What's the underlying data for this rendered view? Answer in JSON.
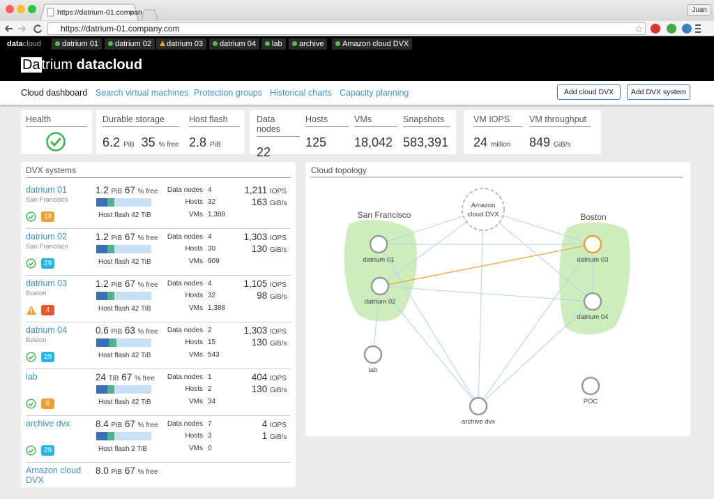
{
  "browser": {
    "tab_title": "https://datrium-01.compan",
    "url": "https://datrium-01.company.com",
    "user": "Juan"
  },
  "topbar": {
    "brand_bold": "data",
    "brand_light": "cloud",
    "tabs": [
      {
        "label": "datrium 01",
        "status": "ok"
      },
      {
        "label": "datrium 02",
        "status": "ok"
      },
      {
        "label": "datrium 03",
        "status": "warning"
      },
      {
        "label": "datrium 04",
        "status": "ok"
      },
      {
        "label": "lab",
        "status": "ok"
      },
      {
        "label": "archive",
        "status": "ok"
      },
      {
        "label": "Amazon cloud DVX",
        "status": "ok"
      }
    ]
  },
  "header": {
    "logo_box": "Da",
    "logo_rest": "trium",
    "logo_product": "datacloud"
  },
  "nav": {
    "links": [
      "Cloud dashboard",
      "Search virtual machines",
      "Protection groups",
      "Historical charts",
      "Capacity planning"
    ],
    "buttons": [
      "Add cloud DVX",
      "Add DVX system"
    ]
  },
  "summary": {
    "health": {
      "title": "Health",
      "status": "ok"
    },
    "durable_storage": {
      "title": "Durable storage",
      "value": "6.2",
      "unit": "PiB",
      "free": "35",
      "free_label": "% free"
    },
    "host_flash": {
      "title": "Host flash",
      "value": "2.8",
      "unit": "PiB"
    },
    "data_nodes": {
      "title": "Data nodes",
      "value": "22"
    },
    "hosts": {
      "title": "Hosts",
      "value": "125"
    },
    "vms": {
      "title": "VMs",
      "value": "18,042"
    },
    "snapshots": {
      "title": "Snapshots",
      "value": "583,391"
    },
    "vm_iops": {
      "title": "VM IOPS",
      "value": "24",
      "unit": "million"
    },
    "vm_throughput": {
      "title": "VM throughput",
      "value": "849",
      "unit": "GiB/s"
    }
  },
  "dvx_systems": {
    "title": "DVX systems",
    "labels": {
      "free": "% free",
      "host_flash": "Host flash",
      "data_nodes": "Data nodes",
      "hosts": "Hosts",
      "vms": "VMs",
      "iops": "IOPS",
      "throughput": "GiB/s"
    },
    "items": [
      {
        "name": "datrium 01",
        "location": "San Francisco",
        "capacity": "1.2",
        "capacity_unit": "PiB",
        "free": 67,
        "flash": "42",
        "flash_unit": "TiB",
        "data_nodes": "4",
        "hosts": "32",
        "vms": "1,388",
        "iops": "1,211",
        "throughput": "163",
        "status": "ok",
        "alerts": "18",
        "badge_color": "#f0a030"
      },
      {
        "name": "datrium 02",
        "location": "San Francisco",
        "capacity": "1.2",
        "capacity_unit": "PiB",
        "free": 67,
        "flash": "42",
        "flash_unit": "TiB",
        "data_nodes": "4",
        "hosts": "30",
        "vms": "909",
        "iops": "1,303",
        "throughput": "130",
        "status": "ok",
        "alerts": "29",
        "badge_color": "#25b5e8"
      },
      {
        "name": "datrium 03",
        "location": "Boston",
        "capacity": "1.2",
        "capacity_unit": "PiB",
        "free": 67,
        "flash": "42",
        "flash_unit": "TiB",
        "data_nodes": "4",
        "hosts": "32",
        "vms": "1,388",
        "iops": "1,105",
        "throughput": "98",
        "status": "warning",
        "alerts": "4",
        "badge_color": "#e8572a"
      },
      {
        "name": "datrium 04",
        "location": "Boston",
        "capacity": "0.6",
        "capacity_unit": "PiB",
        "free": 63,
        "flash": "42",
        "flash_unit": "TiB",
        "data_nodes": "2",
        "hosts": "15",
        "vms": "543",
        "iops": "1,303",
        "throughput": "130",
        "status": "ok",
        "alerts": "29",
        "badge_color": "#25b5e8"
      },
      {
        "name": "lab",
        "capacity": "24",
        "capacity_unit": "TiB",
        "free": 67,
        "flash": "42",
        "flash_unit": "TiB",
        "data_nodes": "1",
        "hosts": "2",
        "vms": "34",
        "iops": "404",
        "throughput": "130",
        "status": "ok",
        "alerts": "6",
        "badge_color": "#f0a030"
      },
      {
        "name": "archive dvx",
        "capacity": "8.4",
        "capacity_unit": "PiB",
        "free": 67,
        "flash": "2",
        "flash_unit": "TiB",
        "data_nodes": "7",
        "hosts": "3",
        "vms": "0",
        "iops": "4",
        "throughput": "1",
        "status": "ok",
        "alerts": "29",
        "badge_color": "#25b5e8"
      },
      {
        "name": "Amazon cloud DVX",
        "capacity": "8.0",
        "capacity_unit": "PiB",
        "free": 67
      }
    ]
  },
  "topology": {
    "title": "Cloud topology",
    "groups": [
      "San Francisco",
      "Boston"
    ],
    "nodes": [
      {
        "label": [
          "Amazon",
          "cloud DVX"
        ],
        "style": "cloud"
      },
      {
        "label": "datrium 01"
      },
      {
        "label": "datrium 02"
      },
      {
        "label": "datrium 03",
        "style": "warning"
      },
      {
        "label": "datrium 04"
      },
      {
        "label": "lab"
      },
      {
        "label": "archive dvx"
      },
      {
        "label": "POC"
      }
    ]
  }
}
